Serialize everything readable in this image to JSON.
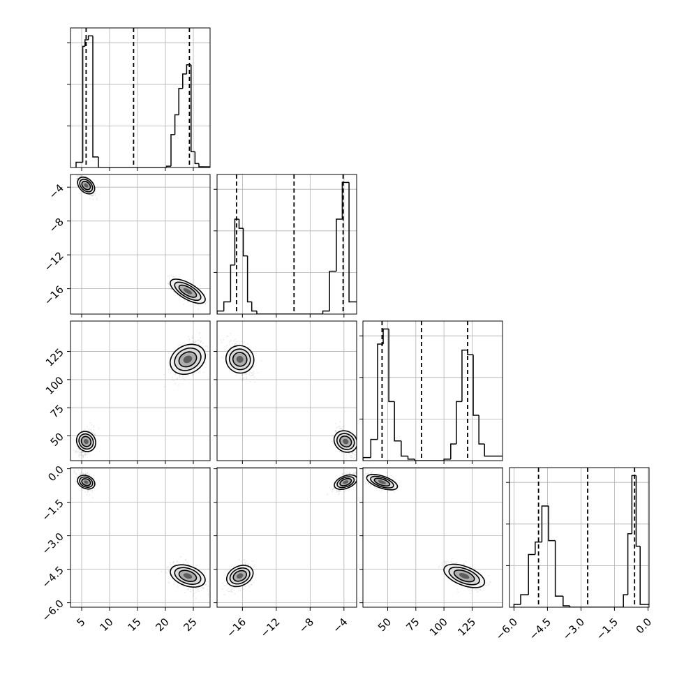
{
  "chart_data": {
    "type": "corner",
    "dimensions": [
      {
        "range": [
          3.0,
          28.0
        ],
        "ticks": [
          5,
          10,
          15,
          20,
          25
        ],
        "tick_labels": [
          "5",
          "10",
          "15",
          "20",
          "25"
        ],
        "quantiles": [
          5.8,
          14.3,
          24.3
        ],
        "histogram": {
          "edges": [
            4.0,
            5.2,
            5.6,
            6.2,
            7.0,
            8.0,
            9.0,
            20.2,
            21.0,
            21.7,
            22.4,
            23.1,
            23.8,
            24.6,
            25.3,
            26.0,
            27.0
          ],
          "counts": [
            4,
            92,
            97,
            100,
            8,
            0,
            0,
            1,
            25,
            40,
            60,
            71,
            78,
            12,
            3,
            0.5
          ]
        }
      },
      {
        "range": [
          -19.0,
          -2.5
        ],
        "ticks": [
          -16,
          -12,
          -8,
          -4
        ],
        "tick_labels": [
          "−16",
          "−12",
          "−8",
          "−4"
        ],
        "quantiles": [
          -16.7,
          -9.9,
          -4.1
        ],
        "histogram": {
          "edges": [
            -19.0,
            -18.2,
            -17.4,
            -16.9,
            -16.4,
            -15.9,
            -15.4,
            -14.9,
            -14.3,
            -6.5,
            -5.7,
            -4.9,
            -4.2,
            -3.4,
            -2.5
          ],
          "counts": [
            1,
            4,
            16,
            31,
            28,
            19,
            4,
            1,
            0,
            1,
            14,
            31,
            43,
            4
          ]
        }
      },
      {
        "range": [
          28,
          152
        ],
        "ticks": [
          50,
          75,
          100,
          125
        ],
        "tick_labels": [
          "50",
          "75",
          "100",
          "125"
        ],
        "quantiles": [
          45,
          80,
          121
        ],
        "histogram": {
          "edges": [
            28,
            35,
            41,
            46,
            51,
            56,
            62,
            68,
            74,
            100,
            106,
            111,
            116,
            121,
            126,
            131,
            136,
            143
          ],
          "counts": [
            2,
            14,
            77,
            87,
            39,
            13,
            3,
            1,
            0,
            1,
            11,
            39,
            73,
            70,
            30,
            11,
            3
          ]
        }
      },
      {
        "range": [
          -6.2,
          0.05
        ],
        "ticks": [
          -6.0,
          -4.5,
          -3.0,
          -1.5,
          0.0
        ],
        "tick_labels": [
          "−6.0",
          "−4.5",
          "−3.0",
          "−1.5",
          "0.0"
        ],
        "quantiles": [
          -4.9,
          -2.7,
          -0.6
        ],
        "histogram": {
          "edges": [
            -6.0,
            -5.7,
            -5.35,
            -5.05,
            -4.75,
            -4.45,
            -4.15,
            -3.8,
            -3.5,
            -1.1,
            -0.9,
            -0.72,
            -0.53,
            -0.35,
            -0.05
          ],
          "counts": [
            2,
            9,
            38,
            47,
            73,
            48,
            8,
            1,
            0,
            9,
            53,
            95,
            44,
            2
          ]
        }
      }
    ],
    "modes": [
      {
        "weight": 0.5,
        "mean": [
          5.8,
          -3.8,
          45,
          -0.6
        ]
      },
      {
        "weight": 0.5,
        "mean": [
          24.0,
          -16.3,
          118,
          -4.8
        ]
      }
    ]
  }
}
